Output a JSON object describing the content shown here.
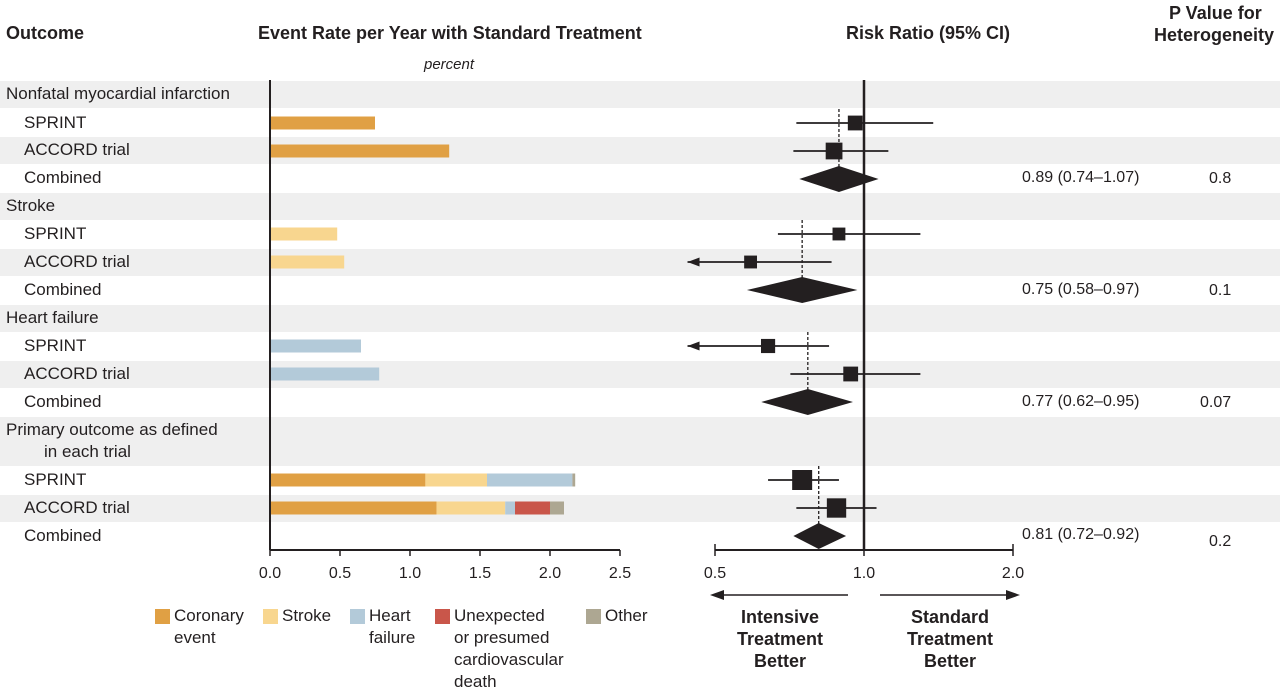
{
  "headers": {
    "outcome": "Outcome",
    "event_rate": "Event Rate per Year with Standard Treatment",
    "event_rate_unit": "percent",
    "risk_ratio": "Risk Ratio (95% CI)",
    "p_value_line1": "P Value for",
    "p_value_line2": "Heterogeneity"
  },
  "groups": [
    {
      "label": "Nonfatal myocardial infarction",
      "sprint": "SPRINT",
      "accord": "ACCORD trial",
      "combined": "Combined",
      "rr_text": "0.89 (0.74–1.07)",
      "p": "0.8"
    },
    {
      "label": "Stroke",
      "sprint": "SPRINT",
      "accord": "ACCORD trial",
      "combined": "Combined",
      "rr_text": "0.75 (0.58–0.97)",
      "p": "0.1"
    },
    {
      "label": "Heart failure",
      "sprint": "SPRINT",
      "accord": "ACCORD trial",
      "combined": "Combined",
      "rr_text": "0.77 (0.62–0.95)",
      "p": "0.07"
    },
    {
      "label_line1": "Primary outcome as defined",
      "label_line2": "in each trial",
      "sprint": "SPRINT",
      "accord": "ACCORD trial",
      "combined": "Combined",
      "rr_text": "0.81 (0.72–0.92)",
      "p": "0.2"
    }
  ],
  "legend": [
    {
      "name": "coronary",
      "line1": "Coronary",
      "line2": "event",
      "line3": "",
      "line4": ""
    },
    {
      "name": "stroke",
      "line1": "Stroke",
      "line2": "",
      "line3": "",
      "line4": ""
    },
    {
      "name": "hf",
      "line1": "Heart",
      "line2": "failure",
      "line3": "",
      "line4": ""
    },
    {
      "name": "cv-death",
      "line1": "Unexpected",
      "line2": "or presumed",
      "line3": "cardiovascular",
      "line4": "death"
    },
    {
      "name": "other",
      "line1": "Other",
      "line2": "",
      "line3": "",
      "line4": ""
    }
  ],
  "direction": {
    "left_line1": "Intensive",
    "left_line2": "Treatment",
    "left_line3": "Better",
    "right_line1": "Standard",
    "right_line2": "Treatment",
    "right_line3": "Better"
  },
  "colors": {
    "coronary": "#e0a044",
    "stroke": "#f8d68f",
    "hf": "#b3cad9",
    "cv_death": "#c9564a",
    "other": "#ada792",
    "marker": "#231f20",
    "stripe": "#efefef"
  },
  "chart_data": [
    {
      "type": "bar",
      "stacked": true,
      "title": "Event Rate per Year with Standard Treatment",
      "xlabel": "percent",
      "xlim": [
        0,
        2.5
      ],
      "xticks": [
        "0.0",
        "0.5",
        "1.0",
        "1.5",
        "2.0",
        "2.5"
      ],
      "components": [
        "Coronary event",
        "Stroke",
        "Heart failure",
        "Unexpected or presumed cardiovascular death",
        "Other"
      ],
      "rows": [
        {
          "row": "mi-sprint",
          "segments": [
            {
              "c": "coronary",
              "v": 0.75
            }
          ]
        },
        {
          "row": "mi-accord",
          "segments": [
            {
              "c": "coronary",
              "v": 1.28
            }
          ]
        },
        {
          "row": "stroke-sprint",
          "segments": [
            {
              "c": "stroke",
              "v": 0.48
            }
          ]
        },
        {
          "row": "stroke-accord",
          "segments": [
            {
              "c": "stroke",
              "v": 0.53
            }
          ]
        },
        {
          "row": "hf-sprint",
          "segments": [
            {
              "c": "hf",
              "v": 0.65
            }
          ]
        },
        {
          "row": "hf-accord",
          "segments": [
            {
              "c": "hf",
              "v": 0.78
            }
          ]
        },
        {
          "row": "primary-sprint",
          "segments": [
            {
              "c": "coronary",
              "v": 1.11
            },
            {
              "c": "stroke",
              "v": 0.44
            },
            {
              "c": "hf",
              "v": 0.61
            },
            {
              "c": "other",
              "v": 0.02
            }
          ]
        },
        {
          "row": "primary-accord",
          "segments": [
            {
              "c": "coronary",
              "v": 1.19
            },
            {
              "c": "stroke",
              "v": 0.49
            },
            {
              "c": "hf",
              "v": 0.07
            },
            {
              "c": "cv_death",
              "v": 0.25
            },
            {
              "c": "other",
              "v": 0.1
            }
          ]
        }
      ]
    },
    {
      "type": "scatter",
      "subtype": "forest",
      "title": "Risk Ratio (95% CI)",
      "xscale": "log",
      "xlim": [
        0.5,
        2.0
      ],
      "xticks": [
        "0.5",
        "1.0",
        "2.0"
      ],
      "reference": 1.0,
      "rows": [
        {
          "row": "mi-sprint",
          "rr": 0.96,
          "lo": 0.73,
          "hi": 1.38,
          "weight": 0.6
        },
        {
          "row": "mi-accord",
          "rr": 0.87,
          "lo": 0.72,
          "hi": 1.12,
          "weight": 0.75
        },
        {
          "row": "mi-combined",
          "rr": 0.89,
          "lo": 0.74,
          "hi": 1.07,
          "combined": true
        },
        {
          "row": "stroke-sprint",
          "rr": 0.89,
          "lo": 0.67,
          "hi": 1.3,
          "weight": 0.45
        },
        {
          "row": "stroke-accord",
          "rr": 0.59,
          "lo": 0.44,
          "hi": 0.86,
          "weight": 0.45,
          "arrow_left": true
        },
        {
          "row": "stroke-combined",
          "rr": 0.75,
          "lo": 0.58,
          "hi": 0.97,
          "combined": true
        },
        {
          "row": "hf-sprint",
          "rr": 0.64,
          "lo": 0.44,
          "hi": 0.85,
          "weight": 0.55,
          "arrow_left": true
        },
        {
          "row": "hf-accord",
          "rr": 0.94,
          "lo": 0.71,
          "hi": 1.3,
          "weight": 0.6
        },
        {
          "row": "hf-combined",
          "rr": 0.77,
          "lo": 0.62,
          "hi": 0.95,
          "combined": true
        },
        {
          "row": "primary-sprint",
          "rr": 0.75,
          "lo": 0.64,
          "hi": 0.89,
          "weight": 1.0
        },
        {
          "row": "primary-accord",
          "rr": 0.88,
          "lo": 0.73,
          "hi": 1.06,
          "weight": 0.95
        },
        {
          "row": "primary-combined",
          "rr": 0.81,
          "lo": 0.72,
          "hi": 0.92,
          "combined": true
        }
      ]
    }
  ]
}
